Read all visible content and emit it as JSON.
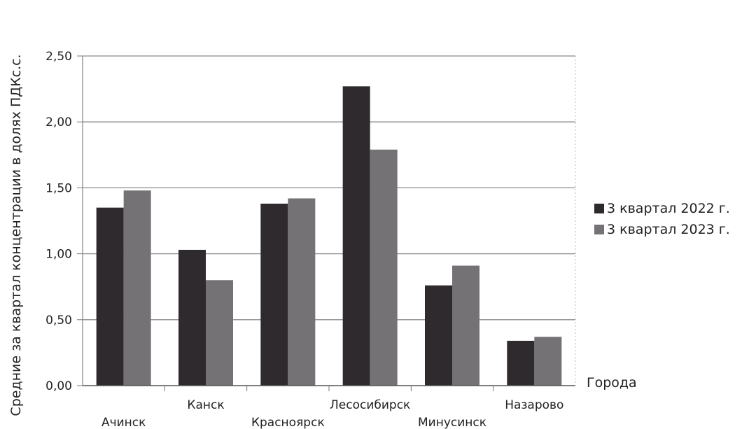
{
  "chart_data": {
    "type": "bar",
    "categories": [
      "Ачинск",
      "Канск",
      "Красноярск",
      "Лесосибирск",
      "Минусинск",
      "Назарово"
    ],
    "series": [
      {
        "name": "3 квартал 2022 г.",
        "values": [
          1.35,
          1.03,
          1.38,
          2.27,
          0.76,
          0.34
        ],
        "color": "#2e2a2d"
      },
      {
        "name": "3 квартал 2023 г.",
        "values": [
          1.48,
          0.8,
          1.42,
          1.79,
          0.91,
          0.37
        ],
        "color": "#757275"
      }
    ],
    "ylabel": "Средние за квартал концентрации в долях ПДКс.с.",
    "xlabel": "Города",
    "ylim": [
      0,
      2.5
    ],
    "yticks": [
      "0,00",
      "0,50",
      "1,00",
      "1,50",
      "2,00",
      "2,50"
    ],
    "ytick_values": [
      0,
      0.5,
      1,
      1.5,
      2,
      2.5
    ],
    "grid": true,
    "legend_position": "right"
  }
}
